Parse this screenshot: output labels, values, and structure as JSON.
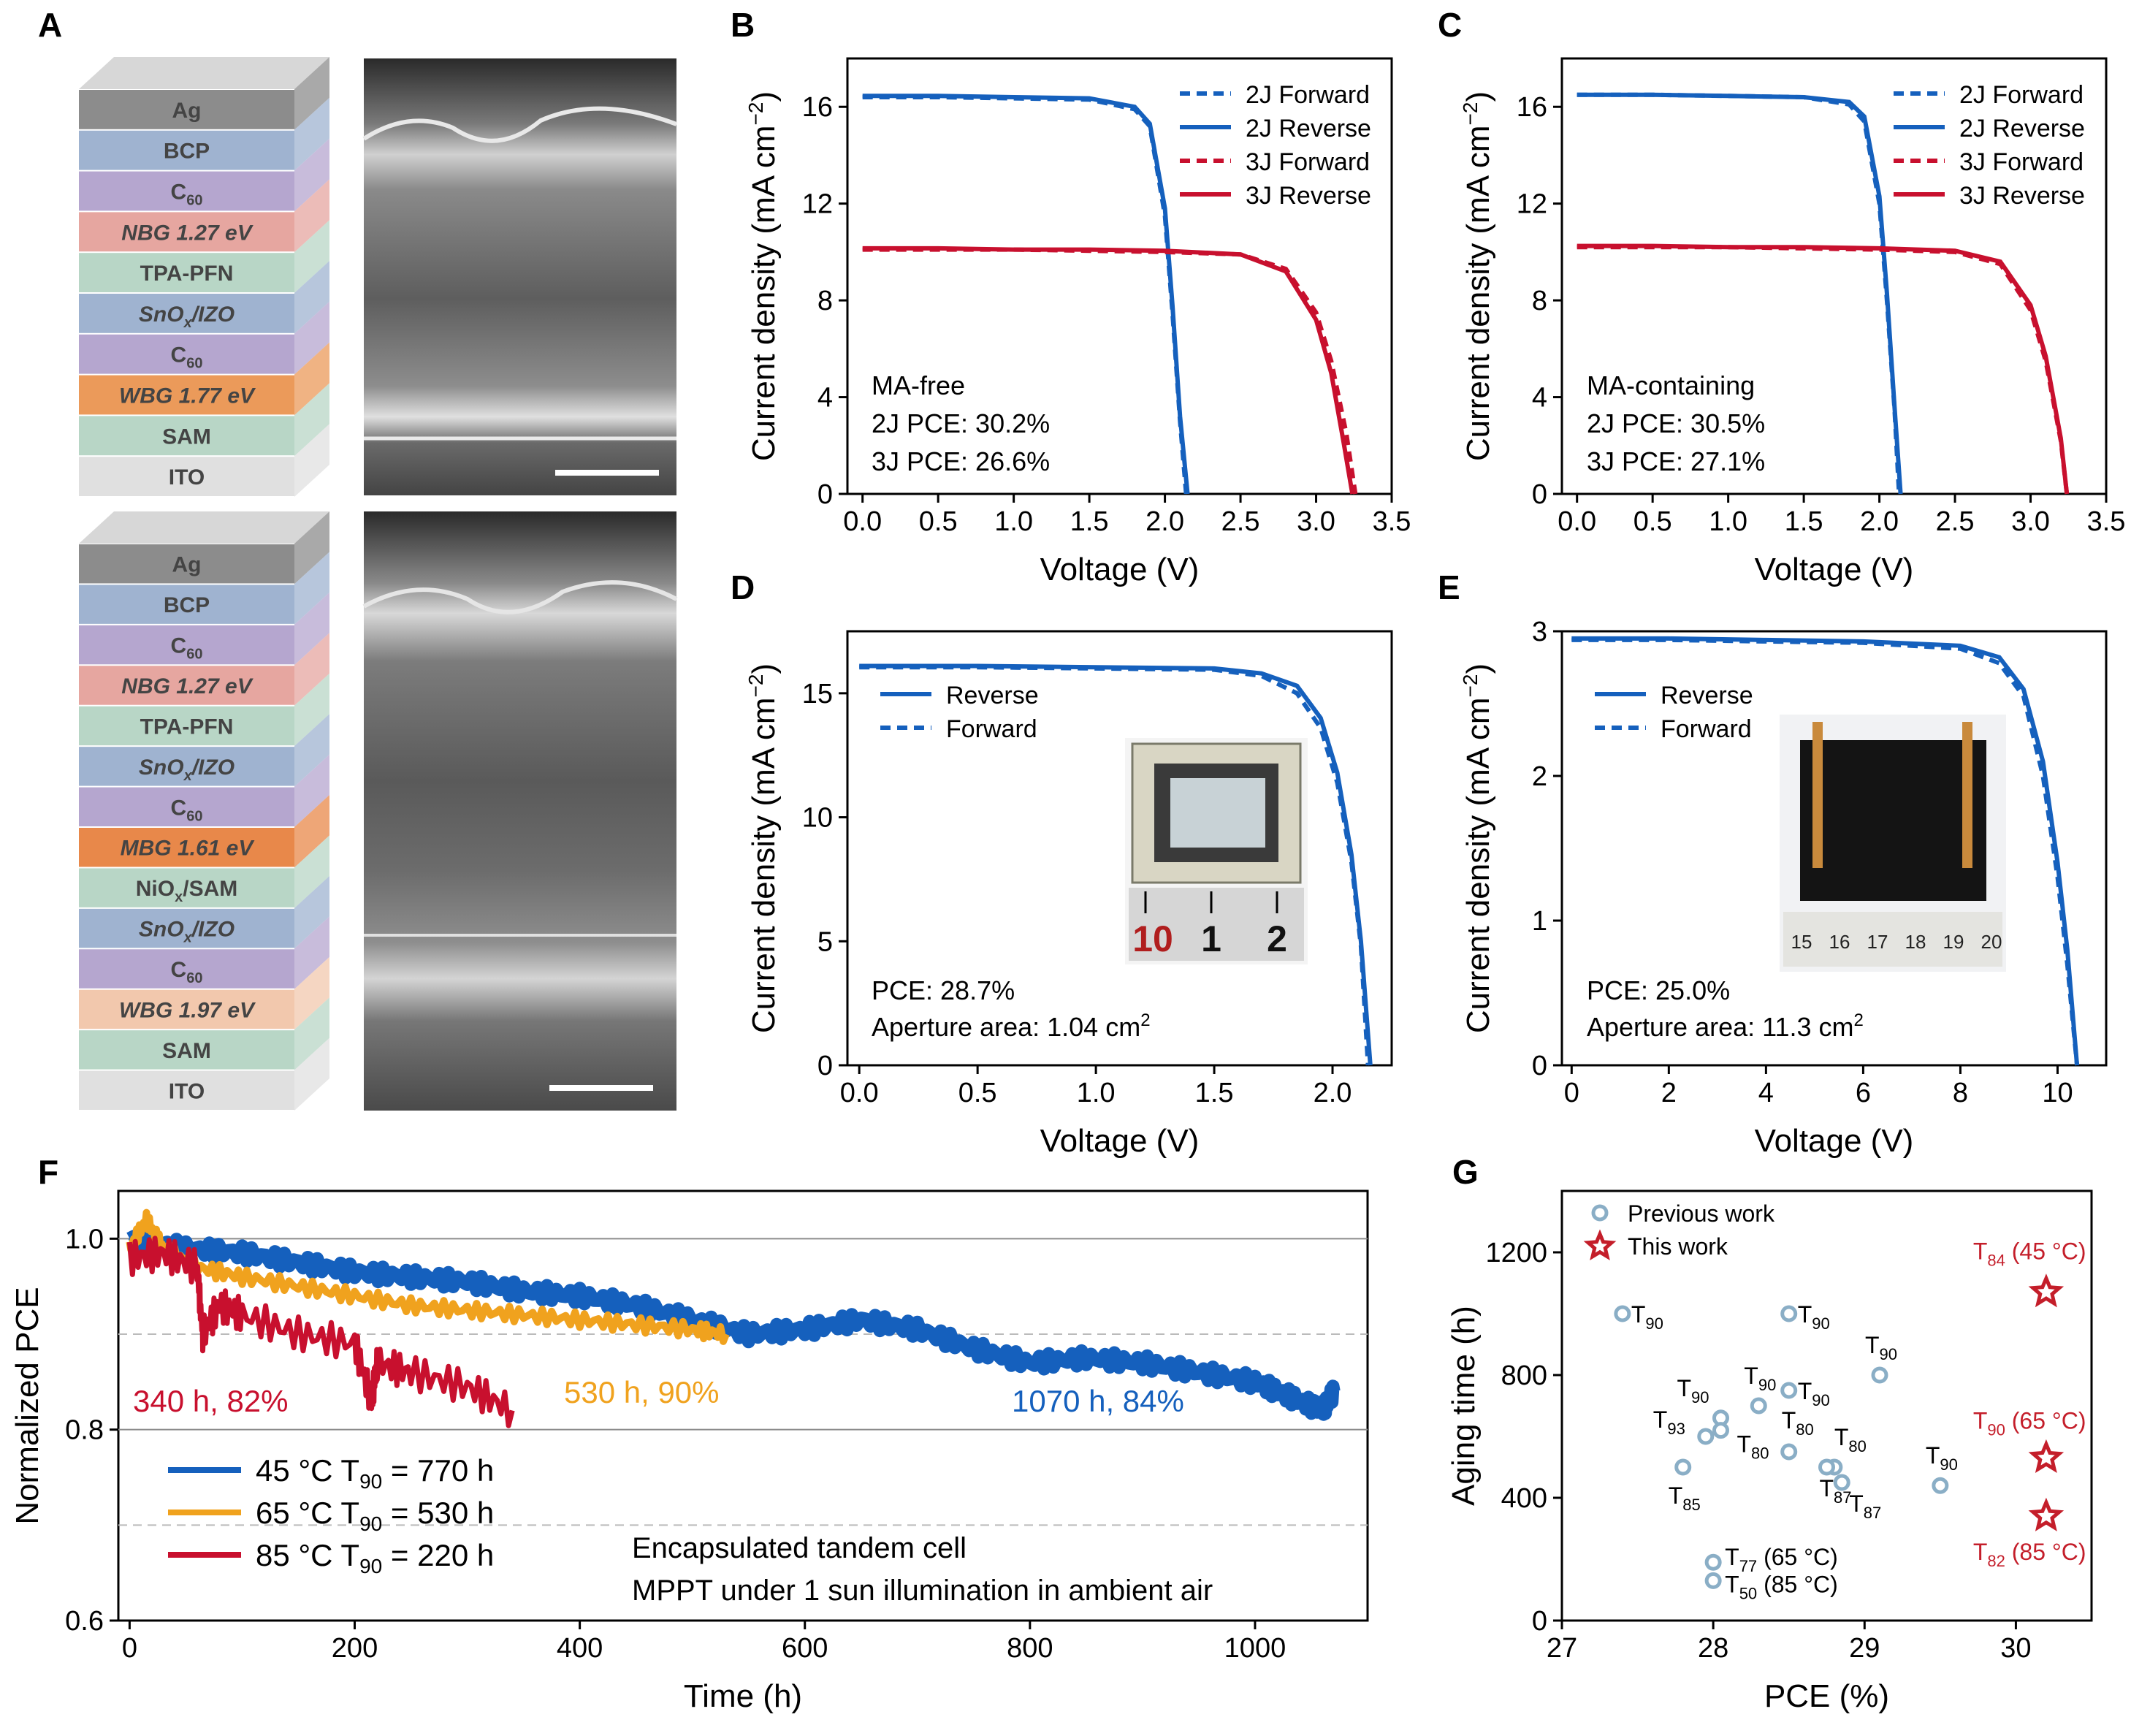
{
  "colors": {
    "blue": "#1560bd",
    "orange": "#f0a21e",
    "red": "#c8102e",
    "marker_blue": "#8aaec6",
    "star_red": "#c41e2a"
  },
  "panel_labels": [
    "A",
    "B",
    "C",
    "D",
    "E",
    "F",
    "G"
  ],
  "panel_a": {
    "stack1": [
      {
        "label": "Ag",
        "color": "#8c8c8c"
      },
      {
        "label": "BCP",
        "color": "#9fb3d0"
      },
      {
        "label": "C60",
        "color": "#b5a6cf"
      },
      {
        "label": "NBG 1.27 eV",
        "color": "#e6a6a0"
      },
      {
        "label": "TPA-PFN",
        "color": "#b8d6c6"
      },
      {
        "label": "SnOx/IZO",
        "color": "#9fb3d0"
      },
      {
        "label": "C60",
        "color": "#b5a6cf"
      },
      {
        "label": "WBG 1.77 eV",
        "color": "#eb9a5a"
      },
      {
        "label": "SAM",
        "color": "#b8d6c6"
      },
      {
        "label": "ITO",
        "color": "#e0e0e0"
      }
    ],
    "stack2": [
      {
        "label": "Ag",
        "color": "#8c8c8c"
      },
      {
        "label": "BCP",
        "color": "#9fb3d0"
      },
      {
        "label": "C60",
        "color": "#b5a6cf"
      },
      {
        "label": "NBG 1.27 eV",
        "color": "#e6a6a0"
      },
      {
        "label": "TPA-PFN",
        "color": "#b8d6c6"
      },
      {
        "label": "SnOx/IZO",
        "color": "#9fb3d0"
      },
      {
        "label": "C60",
        "color": "#b5a6cf"
      },
      {
        "label": "MBG 1.61 eV",
        "color": "#e8884a"
      },
      {
        "label": "NiOx/SAM",
        "color": "#b8d6c6"
      },
      {
        "label": "SnOx/IZO",
        "color": "#9fb3d0"
      },
      {
        "label": "C60",
        "color": "#b5a6cf"
      },
      {
        "label": "WBG 1.97 eV",
        "color": "#f2c8ad"
      },
      {
        "label": "SAM",
        "color": "#b8d6c6"
      },
      {
        "label": "ITO",
        "color": "#e0e0e0"
      }
    ]
  },
  "chart_data": [
    {
      "panel": "B",
      "type": "line",
      "xlabel": "Voltage (V)",
      "ylabel": "Current density (mA cm−2)",
      "xlim": [
        -0.1,
        3.5
      ],
      "ylim": [
        0,
        18
      ],
      "xticks": [
        "0.0",
        "0.5",
        "1.0",
        "1.5",
        "2.0",
        "2.5",
        "3.0",
        "3.5"
      ],
      "yticks": [
        "0",
        "4",
        "8",
        "12",
        "16"
      ],
      "legend": [
        "2J Forward",
        "2J Reverse",
        "3J Forward",
        "3J Reverse"
      ],
      "legend_position": "top-right",
      "annotations": [
        "MA-free",
        "2J PCE: 30.2%",
        "3J PCE: 26.6%"
      ],
      "series": [
        {
          "name": "2J Forward",
          "style": "dashed",
          "color": "blue",
          "x": [
            0,
            0.5,
            1.0,
            1.5,
            1.8,
            1.9,
            2.0,
            2.05,
            2.1,
            2.14
          ],
          "y": [
            16.4,
            16.4,
            16.35,
            16.3,
            15.9,
            15.2,
            11.5,
            7.5,
            3.0,
            0
          ]
        },
        {
          "name": "2J Reverse",
          "style": "solid",
          "color": "blue",
          "x": [
            0,
            0.5,
            1.0,
            1.5,
            1.8,
            1.9,
            2.0,
            2.05,
            2.1,
            2.15
          ],
          "y": [
            16.45,
            16.45,
            16.4,
            16.35,
            16.0,
            15.3,
            11.8,
            7.8,
            3.2,
            0
          ]
        },
        {
          "name": "3J Forward",
          "style": "dashed",
          "color": "red",
          "x": [
            0,
            0.5,
            1.0,
            1.5,
            2.0,
            2.5,
            2.8,
            3.0,
            3.1,
            3.2,
            3.26
          ],
          "y": [
            10.1,
            10.1,
            10.1,
            10.05,
            10.0,
            9.9,
            9.3,
            7.5,
            5.5,
            2.5,
            0
          ]
        },
        {
          "name": "3J Reverse",
          "style": "solid",
          "color": "red",
          "x": [
            0,
            0.5,
            1.0,
            1.5,
            2.0,
            2.5,
            2.8,
            3.0,
            3.1,
            3.18,
            3.24
          ],
          "y": [
            10.15,
            10.15,
            10.1,
            10.1,
            10.05,
            9.9,
            9.2,
            7.2,
            5.0,
            2.2,
            0
          ]
        }
      ]
    },
    {
      "panel": "C",
      "type": "line",
      "xlabel": "Voltage (V)",
      "ylabel": "Current density (mA cm−2)",
      "xlim": [
        -0.1,
        3.5
      ],
      "ylim": [
        0,
        18
      ],
      "xticks": [
        "0.0",
        "0.5",
        "1.0",
        "1.5",
        "2.0",
        "2.5",
        "3.0",
        "3.5"
      ],
      "yticks": [
        "0",
        "4",
        "8",
        "12",
        "16"
      ],
      "legend": [
        "2J Forward",
        "2J Reverse",
        "3J Forward",
        "3J Reverse"
      ],
      "legend_position": "top-right",
      "annotations": [
        "MA-containing",
        "2J PCE: 30.5%",
        "3J PCE: 27.1%"
      ],
      "series": [
        {
          "name": "2J Forward",
          "style": "dashed",
          "color": "blue",
          "x": [
            0,
            0.5,
            1.0,
            1.5,
            1.8,
            1.9,
            2.0,
            2.05,
            2.1,
            2.13
          ],
          "y": [
            16.5,
            16.5,
            16.45,
            16.4,
            16.1,
            15.4,
            12.0,
            8.0,
            3.5,
            0
          ]
        },
        {
          "name": "2J Reverse",
          "style": "solid",
          "color": "blue",
          "x": [
            0,
            0.5,
            1.0,
            1.5,
            1.8,
            1.9,
            2.0,
            2.05,
            2.1,
            2.14
          ],
          "y": [
            16.5,
            16.5,
            16.45,
            16.4,
            16.2,
            15.6,
            12.3,
            8.3,
            3.6,
            0
          ]
        },
        {
          "name": "3J Forward",
          "style": "dashed",
          "color": "red",
          "x": [
            0,
            0.5,
            1.0,
            1.5,
            2.0,
            2.5,
            2.8,
            3.0,
            3.1,
            3.2,
            3.24
          ],
          "y": [
            10.2,
            10.2,
            10.2,
            10.15,
            10.1,
            10.0,
            9.5,
            7.6,
            5.5,
            2.2,
            0
          ]
        },
        {
          "name": "3J Reverse",
          "style": "solid",
          "color": "red",
          "x": [
            0,
            0.5,
            1.0,
            1.5,
            2.0,
            2.5,
            2.8,
            3.0,
            3.1,
            3.2,
            3.24
          ],
          "y": [
            10.25,
            10.25,
            10.2,
            10.2,
            10.15,
            10.05,
            9.6,
            7.8,
            5.7,
            2.3,
            0
          ]
        }
      ]
    },
    {
      "panel": "D",
      "type": "line",
      "xlabel": "Voltage (V)",
      "ylabel": "Current density (mA cm−2)",
      "xlim": [
        -0.05,
        2.25
      ],
      "ylim": [
        0,
        17.5
      ],
      "xticks": [
        "0.0",
        "0.5",
        "1.0",
        "1.5",
        "2.0"
      ],
      "yticks": [
        "0",
        "5",
        "10",
        "15"
      ],
      "legend": [
        "Reverse",
        "Forward"
      ],
      "legend_position": "top-left",
      "annotations": [
        "PCE: 28.7%",
        "Aperture area: 1.04 cm2"
      ],
      "inset_scale": [
        "10",
        "1",
        "2"
      ],
      "series": [
        {
          "name": "Reverse",
          "style": "solid",
          "color": "blue",
          "x": [
            0,
            0.5,
            1.0,
            1.5,
            1.7,
            1.85,
            1.95,
            2.02,
            2.08,
            2.12,
            2.16
          ],
          "y": [
            16.1,
            16.1,
            16.05,
            16.0,
            15.8,
            15.3,
            14.0,
            11.8,
            8.5,
            5.0,
            0
          ]
        },
        {
          "name": "Forward",
          "style": "dashed",
          "color": "blue",
          "x": [
            0,
            0.5,
            1.0,
            1.5,
            1.7,
            1.85,
            1.95,
            2.02,
            2.08,
            2.12,
            2.15
          ],
          "y": [
            16.05,
            16.05,
            16.0,
            15.95,
            15.7,
            15.0,
            13.6,
            11.4,
            8.2,
            4.8,
            0
          ]
        }
      ]
    },
    {
      "panel": "E",
      "type": "line",
      "xlabel": "Voltage (V)",
      "ylabel": "Current density (mA cm−2)",
      "xlim": [
        -0.2,
        11.0
      ],
      "ylim": [
        0,
        3.0
      ],
      "xticks": [
        "0",
        "2",
        "4",
        "6",
        "8",
        "10"
      ],
      "yticks": [
        "0",
        "1",
        "2",
        "3"
      ],
      "legend": [
        "Reverse",
        "Forward"
      ],
      "legend_position": "top-left",
      "annotations": [
        "PCE: 25.0%",
        "Aperture area: 11.3 cm2"
      ],
      "inset_scale": [
        "15",
        "16",
        "17",
        "18",
        "19",
        "20"
      ],
      "series": [
        {
          "name": "Reverse",
          "style": "solid",
          "color": "blue",
          "x": [
            0,
            2,
            4,
            6,
            8,
            8.8,
            9.3,
            9.7,
            10.0,
            10.2,
            10.4
          ],
          "y": [
            2.95,
            2.95,
            2.94,
            2.93,
            2.9,
            2.82,
            2.6,
            2.1,
            1.4,
            0.8,
            0
          ]
        },
        {
          "name": "Forward",
          "style": "dashed",
          "color": "blue",
          "x": [
            0,
            2,
            4,
            6,
            8,
            8.8,
            9.3,
            9.7,
            10.0,
            10.2,
            10.4
          ],
          "y": [
            2.94,
            2.94,
            2.93,
            2.92,
            2.88,
            2.78,
            2.55,
            2.0,
            1.3,
            0.7,
            0
          ]
        }
      ]
    },
    {
      "panel": "F",
      "type": "line",
      "xlabel": "Time (h)",
      "ylabel": "Normalized PCE",
      "xlim": [
        -10,
        1100
      ],
      "ylim": [
        0.6,
        1.05
      ],
      "xticks": [
        "0",
        "200",
        "400",
        "600",
        "800",
        "1000"
      ],
      "yticks": [
        "0.6",
        "0.8",
        "1.0"
      ],
      "legend": [
        "45 °C  T90 = 770 h",
        "65 °C  T90 = 530 h",
        "85 °C  T90 = 220 h"
      ],
      "legend_position": "bottom-left",
      "annotations": [
        "340 h, 82%",
        "530 h, 90%",
        "1070 h, 84%",
        "Encapsulated tandem cell",
        "MPPT under 1 sun illumination in ambient air"
      ],
      "series": [
        {
          "name": "45 °C",
          "color": "blue",
          "x": [
            0,
            50,
            100,
            150,
            200,
            250,
            300,
            350,
            400,
            450,
            500,
            550,
            600,
            650,
            700,
            750,
            800,
            850,
            900,
            950,
            1000,
            1030,
            1060,
            1070
          ],
          "y": [
            1.0,
            0.99,
            0.985,
            0.975,
            0.965,
            0.96,
            0.955,
            0.945,
            0.94,
            0.93,
            0.915,
            0.9,
            0.905,
            0.915,
            0.905,
            0.885,
            0.87,
            0.875,
            0.87,
            0.86,
            0.85,
            0.835,
            0.82,
            0.84
          ]
        },
        {
          "name": "65 °C",
          "color": "orange",
          "x": [
            0,
            15,
            30,
            60,
            100,
            150,
            200,
            250,
            300,
            350,
            400,
            450,
            500,
            530
          ],
          "y": [
            0.99,
            1.02,
            0.99,
            0.97,
            0.96,
            0.95,
            0.94,
            0.93,
            0.925,
            0.92,
            0.915,
            0.91,
            0.905,
            0.9
          ]
        },
        {
          "name": "85 °C",
          "color": "red",
          "x": [
            0,
            30,
            60,
            65,
            80,
            100,
            150,
            200,
            215,
            220,
            250,
            300,
            340
          ],
          "y": [
            0.98,
            0.985,
            0.97,
            0.9,
            0.93,
            0.92,
            0.9,
            0.89,
            0.83,
            0.87,
            0.86,
            0.845,
            0.82
          ]
        }
      ]
    },
    {
      "panel": "G",
      "type": "scatter",
      "xlabel": "PCE (%)",
      "ylabel": "Aging time (h)",
      "xlim": [
        27,
        30.5
      ],
      "ylim": [
        0,
        1400
      ],
      "xticks": [
        "27",
        "28",
        "29",
        "30"
      ],
      "yticks": [
        "0",
        "400",
        "800",
        "1200"
      ],
      "legend": [
        "Previous work",
        "This work"
      ],
      "legend_position": "top-left",
      "series": [
        {
          "name": "Previous work",
          "marker": "circle",
          "points": [
            {
              "x": 27.4,
              "y": 1000,
              "label": "T90"
            },
            {
              "x": 28.5,
              "y": 1000,
              "label": "T90"
            },
            {
              "x": 29.1,
              "y": 800,
              "label": "T90"
            },
            {
              "x": 28.5,
              "y": 750,
              "label": "T90"
            },
            {
              "x": 28.3,
              "y": 700,
              "label": "T90"
            },
            {
              "x": 28.05,
              "y": 660,
              "label": "T90"
            },
            {
              "x": 28.05,
              "y": 620,
              "label": "T80"
            },
            {
              "x": 27.95,
              "y": 600,
              "label": "T93"
            },
            {
              "x": 28.5,
              "y": 550,
              "label": "T80"
            },
            {
              "x": 28.8,
              "y": 500,
              "label": "T80"
            },
            {
              "x": 27.8,
              "y": 500,
              "label": "T85"
            },
            {
              "x": 28.75,
              "y": 500,
              "label": "T87"
            },
            {
              "x": 28.85,
              "y": 450,
              "label": "T87"
            },
            {
              "x": 29.5,
              "y": 440,
              "label": "T90"
            },
            {
              "x": 28.0,
              "y": 190,
              "label": "T77 (65 °C)"
            },
            {
              "x": 28.0,
              "y": 130,
              "label": "T50 (85 °C)"
            }
          ]
        },
        {
          "name": "This work",
          "marker": "star",
          "points": [
            {
              "x": 30.2,
              "y": 1070,
              "label": "T84 (45 °C)"
            },
            {
              "x": 30.2,
              "y": 530,
              "label": "T90 (65 °C)"
            },
            {
              "x": 30.2,
              "y": 340,
              "label": "T82 (85 °C)"
            }
          ]
        }
      ]
    }
  ]
}
